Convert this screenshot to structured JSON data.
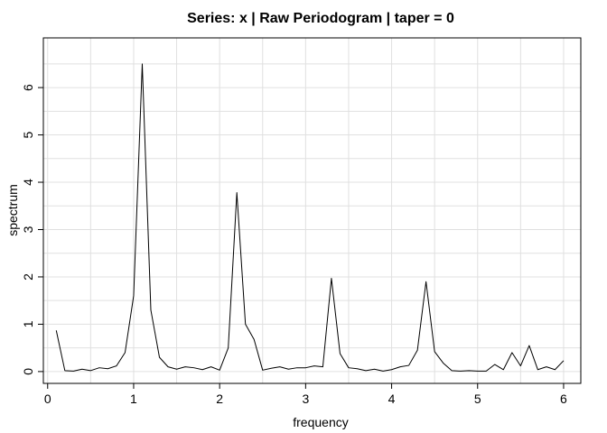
{
  "chart_data": {
    "type": "line",
    "title": "Series: x  |  Raw Periodogram  |  taper = 0",
    "xlabel": "frequency",
    "ylabel": "spectrum",
    "xlim": [
      -0.05,
      6.2
    ],
    "ylim": [
      -0.25,
      7.05
    ],
    "xticks": [
      0,
      1,
      2,
      3,
      4,
      5,
      6
    ],
    "yticks": [
      0,
      1,
      2,
      3,
      4,
      5,
      6
    ],
    "xgrid": [
      0,
      0.5,
      1,
      1.5,
      2,
      2.5,
      3,
      3.5,
      4,
      4.5,
      5,
      5.5,
      6
    ],
    "ygrid": [
      0,
      0.5,
      1,
      1.5,
      2,
      2.5,
      3,
      3.5,
      4,
      4.5,
      5,
      5.5,
      6,
      6.5
    ],
    "grid": true,
    "line_color": "#000000",
    "grid_color": "#e0e0e0",
    "series": [
      {
        "x": [
          0.1,
          0.2,
          0.3,
          0.4,
          0.5,
          0.6,
          0.7,
          0.8,
          0.9,
          1.0,
          1.1,
          1.2,
          1.3,
          1.4,
          1.5,
          1.6,
          1.7,
          1.8,
          1.9,
          2.0,
          2.1,
          2.2,
          2.3,
          2.4,
          2.5,
          2.6,
          2.7,
          2.8,
          2.9,
          3.0,
          3.1,
          3.2,
          3.3,
          3.4,
          3.5,
          3.6,
          3.7,
          3.8,
          3.9,
          4.0,
          4.1,
          4.2,
          4.3,
          4.4,
          4.5,
          4.6,
          4.7,
          4.8,
          4.9,
          5.0,
          5.1,
          5.2,
          5.3,
          5.4,
          5.5,
          5.6,
          5.7,
          5.8,
          5.9,
          6.0
        ],
        "values": [
          0.87,
          0.02,
          0.01,
          0.05,
          0.02,
          0.08,
          0.06,
          0.12,
          0.4,
          1.6,
          6.5,
          1.3,
          0.3,
          0.1,
          0.05,
          0.1,
          0.08,
          0.04,
          0.1,
          0.03,
          0.5,
          3.78,
          1.0,
          0.68,
          0.03,
          0.07,
          0.1,
          0.05,
          0.08,
          0.08,
          0.12,
          0.1,
          1.97,
          0.38,
          0.08,
          0.06,
          0.02,
          0.05,
          0.01,
          0.04,
          0.1,
          0.13,
          0.45,
          1.9,
          0.42,
          0.18,
          0.02,
          0.01,
          0.02,
          0.01,
          0.01,
          0.15,
          0.04,
          0.4,
          0.12,
          0.55,
          0.04,
          0.1,
          0.04,
          0.23
        ]
      }
    ]
  }
}
